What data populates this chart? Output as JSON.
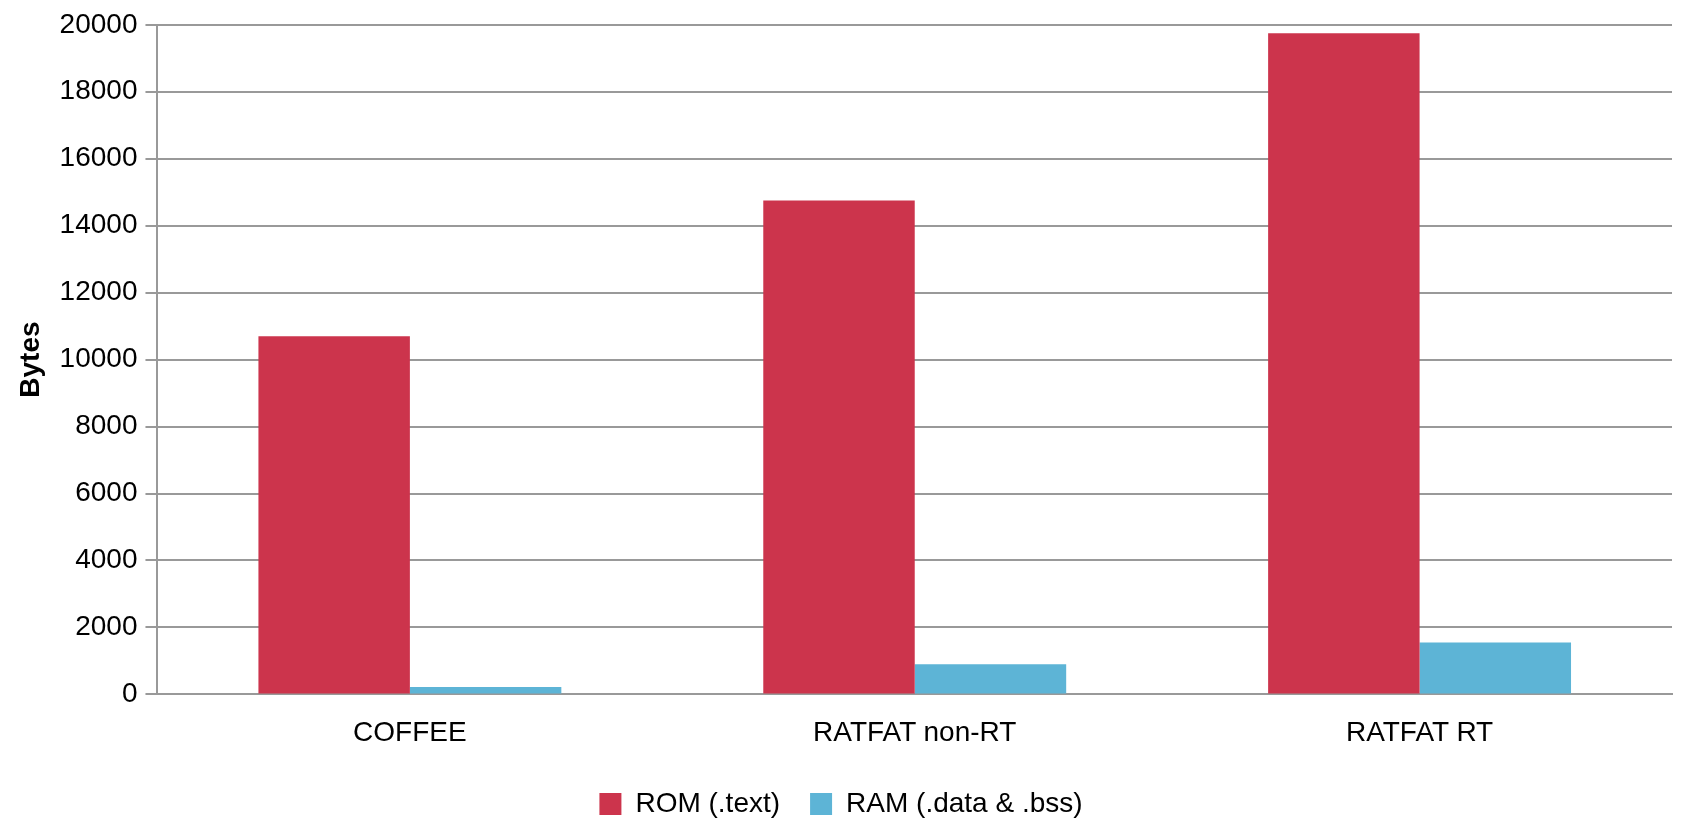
{
  "chart_data": {
    "type": "bar",
    "ylabel": "Bytes",
    "categories": [
      "COFFEE",
      "RATFAT non-RT",
      "RATFAT RT"
    ],
    "series": [
      {
        "name": "ROM (.text)",
        "color": "#cc344c",
        "values": [
          10700,
          14750,
          19750
        ]
      },
      {
        "name": "RAM (.data & .bss)",
        "color": "#5db4d6",
        "values": [
          220,
          900,
          1550
        ]
      }
    ],
    "ylim": [
      0,
      20000
    ],
    "yticks": [
      0,
      2000,
      4000,
      6000,
      8000,
      10000,
      12000,
      14000,
      16000,
      18000,
      20000
    ],
    "grid": "y",
    "legend": "bottom"
  }
}
